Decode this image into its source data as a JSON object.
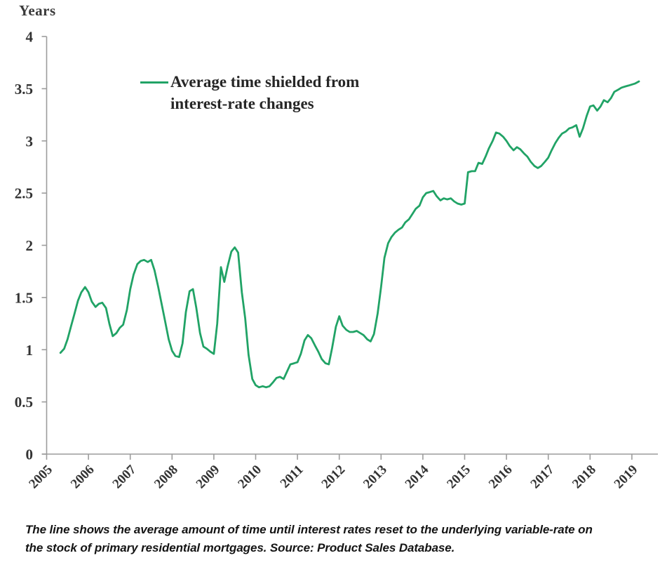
{
  "chart": {
    "y_axis_title": "Years",
    "legend_line1": "Average time shielded from",
    "legend_line2": "interest-rate changes",
    "footnote_line1": "The line shows the average amount of time until interest rates reset to the underlying variable-rate on",
    "footnote_line2": "the stock of primary residential mortgages. Source: Product Sales Database.",
    "colors": {
      "line": "#21a366",
      "axis": "#9c9c9c",
      "tick_label": "#333333",
      "footnote_text": "#141414"
    }
  },
  "chart_data": {
    "type": "line",
    "title": "",
    "xlabel": "",
    "ylabel": "Years",
    "ylim": [
      0,
      4
    ],
    "xlim": [
      2005,
      2019.6
    ],
    "grid": false,
    "legend_position": "top-left-inside",
    "y_ticks": [
      0,
      0.5,
      1,
      1.5,
      2,
      2.5,
      3,
      3.5,
      4
    ],
    "x_ticks": [
      2005,
      2006,
      2007,
      2008,
      2009,
      2010,
      2011,
      2012,
      2013,
      2014,
      2015,
      2016,
      2017,
      2018,
      2019
    ],
    "series": [
      {
        "name": "Average time shielded from interest-rate changes",
        "color": "#21a366",
        "points": [
          [
            2005.33,
            0.97
          ],
          [
            2005.42,
            1.01
          ],
          [
            2005.5,
            1.1
          ],
          [
            2005.58,
            1.22
          ],
          [
            2005.67,
            1.35
          ],
          [
            2005.75,
            1.47
          ],
          [
            2005.83,
            1.55
          ],
          [
            2005.92,
            1.6
          ],
          [
            2006.0,
            1.55
          ],
          [
            2006.08,
            1.46
          ],
          [
            2006.17,
            1.41
          ],
          [
            2006.25,
            1.44
          ],
          [
            2006.33,
            1.45
          ],
          [
            2006.42,
            1.4
          ],
          [
            2006.5,
            1.25
          ],
          [
            2006.58,
            1.13
          ],
          [
            2006.67,
            1.16
          ],
          [
            2006.75,
            1.21
          ],
          [
            2006.83,
            1.24
          ],
          [
            2006.92,
            1.38
          ],
          [
            2007.0,
            1.58
          ],
          [
            2007.08,
            1.72
          ],
          [
            2007.17,
            1.82
          ],
          [
            2007.25,
            1.85
          ],
          [
            2007.33,
            1.86
          ],
          [
            2007.42,
            1.84
          ],
          [
            2007.5,
            1.86
          ],
          [
            2007.58,
            1.76
          ],
          [
            2007.67,
            1.6
          ],
          [
            2007.75,
            1.44
          ],
          [
            2007.83,
            1.28
          ],
          [
            2007.92,
            1.1
          ],
          [
            2008.0,
            0.99
          ],
          [
            2008.08,
            0.94
          ],
          [
            2008.17,
            0.93
          ],
          [
            2008.25,
            1.06
          ],
          [
            2008.33,
            1.36
          ],
          [
            2008.42,
            1.56
          ],
          [
            2008.5,
            1.58
          ],
          [
            2008.58,
            1.4
          ],
          [
            2008.67,
            1.16
          ],
          [
            2008.75,
            1.03
          ],
          [
            2008.83,
            1.01
          ],
          [
            2008.92,
            0.98
          ],
          [
            2009.0,
            0.96
          ],
          [
            2009.08,
            1.25
          ],
          [
            2009.17,
            1.79
          ],
          [
            2009.25,
            1.65
          ],
          [
            2009.33,
            1.8
          ],
          [
            2009.42,
            1.94
          ],
          [
            2009.5,
            1.98
          ],
          [
            2009.58,
            1.93
          ],
          [
            2009.67,
            1.55
          ],
          [
            2009.75,
            1.3
          ],
          [
            2009.83,
            0.95
          ],
          [
            2009.92,
            0.72
          ],
          [
            2010.0,
            0.66
          ],
          [
            2010.08,
            0.64
          ],
          [
            2010.17,
            0.65
          ],
          [
            2010.25,
            0.64
          ],
          [
            2010.33,
            0.65
          ],
          [
            2010.42,
            0.69
          ],
          [
            2010.5,
            0.73
          ],
          [
            2010.58,
            0.74
          ],
          [
            2010.67,
            0.72
          ],
          [
            2010.75,
            0.79
          ],
          [
            2010.83,
            0.86
          ],
          [
            2010.92,
            0.87
          ],
          [
            2011.0,
            0.88
          ],
          [
            2011.08,
            0.96
          ],
          [
            2011.17,
            1.09
          ],
          [
            2011.25,
            1.14
          ],
          [
            2011.33,
            1.11
          ],
          [
            2011.42,
            1.04
          ],
          [
            2011.5,
            0.98
          ],
          [
            2011.58,
            0.91
          ],
          [
            2011.67,
            0.87
          ],
          [
            2011.75,
            0.86
          ],
          [
            2011.83,
            1.02
          ],
          [
            2011.92,
            1.22
          ],
          [
            2012.0,
            1.32
          ],
          [
            2012.08,
            1.23
          ],
          [
            2012.17,
            1.19
          ],
          [
            2012.25,
            1.17
          ],
          [
            2012.33,
            1.17
          ],
          [
            2012.42,
            1.18
          ],
          [
            2012.5,
            1.16
          ],
          [
            2012.58,
            1.14
          ],
          [
            2012.67,
            1.1
          ],
          [
            2012.75,
            1.08
          ],
          [
            2012.83,
            1.15
          ],
          [
            2012.92,
            1.35
          ],
          [
            2013.0,
            1.6
          ],
          [
            2013.08,
            1.88
          ],
          [
            2013.17,
            2.02
          ],
          [
            2013.25,
            2.08
          ],
          [
            2013.33,
            2.12
          ],
          [
            2013.42,
            2.15
          ],
          [
            2013.5,
            2.17
          ],
          [
            2013.58,
            2.22
          ],
          [
            2013.67,
            2.25
          ],
          [
            2013.75,
            2.3
          ],
          [
            2013.83,
            2.35
          ],
          [
            2013.92,
            2.38
          ],
          [
            2014.0,
            2.46
          ],
          [
            2014.08,
            2.5
          ],
          [
            2014.17,
            2.51
          ],
          [
            2014.25,
            2.52
          ],
          [
            2014.33,
            2.47
          ],
          [
            2014.42,
            2.43
          ],
          [
            2014.5,
            2.45
          ],
          [
            2014.58,
            2.44
          ],
          [
            2014.67,
            2.45
          ],
          [
            2014.75,
            2.42
          ],
          [
            2014.83,
            2.4
          ],
          [
            2014.92,
            2.39
          ],
          [
            2015.0,
            2.4
          ],
          [
            2015.08,
            2.7
          ],
          [
            2015.17,
            2.71
          ],
          [
            2015.25,
            2.71
          ],
          [
            2015.33,
            2.79
          ],
          [
            2015.42,
            2.78
          ],
          [
            2015.5,
            2.85
          ],
          [
            2015.58,
            2.93
          ],
          [
            2015.67,
            3.0
          ],
          [
            2015.75,
            3.08
          ],
          [
            2015.83,
            3.07
          ],
          [
            2015.92,
            3.04
          ],
          [
            2016.0,
            3.0
          ],
          [
            2016.08,
            2.95
          ],
          [
            2016.17,
            2.91
          ],
          [
            2016.25,
            2.94
          ],
          [
            2016.33,
            2.92
          ],
          [
            2016.42,
            2.88
          ],
          [
            2016.5,
            2.85
          ],
          [
            2016.58,
            2.8
          ],
          [
            2016.67,
            2.76
          ],
          [
            2016.75,
            2.74
          ],
          [
            2016.83,
            2.76
          ],
          [
            2016.92,
            2.8
          ],
          [
            2017.0,
            2.84
          ],
          [
            2017.08,
            2.91
          ],
          [
            2017.17,
            2.98
          ],
          [
            2017.25,
            3.03
          ],
          [
            2017.33,
            3.07
          ],
          [
            2017.42,
            3.09
          ],
          [
            2017.5,
            3.12
          ],
          [
            2017.58,
            3.13
          ],
          [
            2017.67,
            3.15
          ],
          [
            2017.75,
            3.04
          ],
          [
            2017.83,
            3.12
          ],
          [
            2017.92,
            3.24
          ],
          [
            2018.0,
            3.33
          ],
          [
            2018.08,
            3.34
          ],
          [
            2018.17,
            3.29
          ],
          [
            2018.25,
            3.33
          ],
          [
            2018.33,
            3.39
          ],
          [
            2018.42,
            3.37
          ],
          [
            2018.5,
            3.41
          ],
          [
            2018.58,
            3.47
          ],
          [
            2018.67,
            3.49
          ],
          [
            2018.75,
            3.51
          ],
          [
            2018.83,
            3.52
          ],
          [
            2018.92,
            3.53
          ],
          [
            2019.0,
            3.54
          ],
          [
            2019.08,
            3.55
          ],
          [
            2019.17,
            3.57
          ]
        ]
      }
    ]
  }
}
